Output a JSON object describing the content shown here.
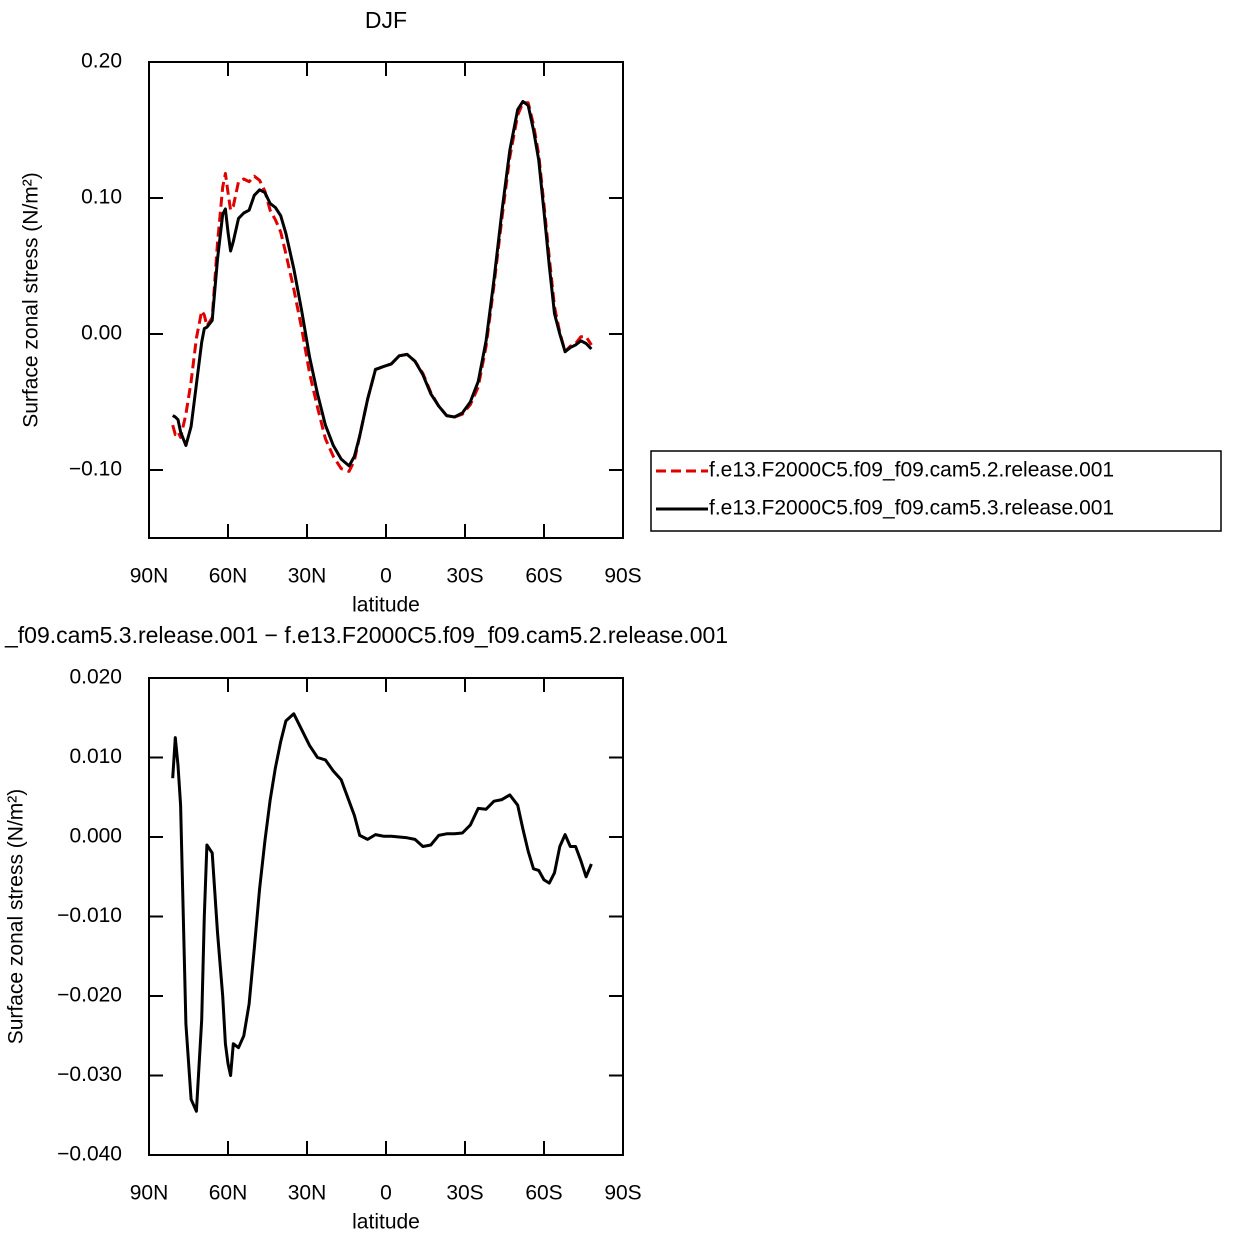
{
  "chart_data": [
    {
      "type": "line",
      "title": "DJF",
      "x_label": "latitude",
      "y_label": "Surface zonal stress (N/m²)",
      "x": [
        81,
        80,
        79,
        78,
        76,
        74,
        72,
        70,
        69,
        68,
        66,
        64,
        62,
        61,
        60,
        59,
        58,
        56,
        54,
        52,
        50,
        48,
        46,
        44,
        42,
        40,
        38,
        35,
        32,
        29,
        26,
        23,
        20,
        17,
        14,
        12,
        10,
        7,
        4,
        1,
        -2,
        -5,
        -8,
        -11,
        -14,
        -17,
        -20,
        -23,
        -26,
        -29,
        -32,
        -35,
        -38,
        -41,
        -44,
        -47,
        -50,
        -52,
        -54,
        -56,
        -58,
        -60,
        -62,
        -64,
        -66,
        -68,
        -70,
        -72,
        -74,
        -76,
        -78
      ],
      "xlim": [
        90,
        -90
      ],
      "xticks": [
        {
          "value": 90,
          "label": "90N"
        },
        {
          "value": 60,
          "label": "60N"
        },
        {
          "value": 30,
          "label": "30N"
        },
        0,
        {
          "value": -30,
          "label": "30S"
        },
        {
          "value": -60,
          "label": "60S"
        },
        {
          "value": -90,
          "label": "90S"
        }
      ],
      "ylim": [
        -0.15,
        0.2
      ],
      "yticks": [
        {
          "value": 0.2,
          "label": "0.20"
        },
        {
          "value": 0.1,
          "label": "0.10"
        },
        {
          "value": 0,
          "label": "0.00"
        },
        {
          "value": -0.1,
          "label": "−0.10"
        }
      ],
      "legend": "right",
      "series": [
        {
          "name": "f.e13.F2000C5.f09_f09.cam5.2.release.001",
          "color": "#e00000",
          "linestyle": "dashed",
          "values": [
            -0.067,
            -0.074,
            -0.072,
            -0.076,
            -0.059,
            -0.035,
            -0.003,
            0.017,
            0.014,
            0.006,
            0.012,
            0.067,
            0.108,
            0.118,
            0.104,
            0.091,
            0.094,
            0.112,
            0.114,
            0.112,
            0.116,
            0.113,
            0.105,
            0.091,
            0.084,
            0.075,
            0.059,
            0.033,
            0.004,
            -0.029,
            -0.054,
            -0.077,
            -0.09,
            -0.099,
            -0.101,
            -0.093,
            -0.075,
            -0.048,
            -0.026,
            -0.024,
            -0.022,
            -0.016,
            -0.015,
            -0.02,
            -0.029,
            -0.043,
            -0.053,
            -0.06,
            -0.061,
            -0.059,
            -0.052,
            -0.039,
            -0.009,
            0.036,
            0.085,
            0.13,
            0.161,
            0.17,
            0.17,
            0.154,
            0.132,
            0.095,
            0.056,
            0.02,
            0.001,
            -0.013,
            -0.009,
            -0.007,
            -0.002,
            -0.002,
            -0.008
          ]
        },
        {
          "name": "f.e13.F2000C5.f09_f09.cam5.3.release.001",
          "color": "#000000",
          "linestyle": "solid",
          "values": [
            -0.06,
            -0.061,
            -0.063,
            -0.072,
            -0.082,
            -0.068,
            -0.037,
            -0.006,
            0.004,
            0.005,
            0.01,
            0.055,
            0.088,
            0.092,
            0.075,
            0.061,
            0.068,
            0.085,
            0.089,
            0.091,
            0.102,
            0.106,
            0.104,
            0.096,
            0.093,
            0.087,
            0.074,
            0.048,
            0.017,
            -0.017,
            -0.044,
            -0.067,
            -0.082,
            -0.092,
            -0.097,
            -0.09,
            -0.075,
            -0.048,
            -0.026,
            -0.024,
            -0.022,
            -0.016,
            -0.015,
            -0.02,
            -0.03,
            -0.044,
            -0.053,
            -0.06,
            -0.061,
            -0.058,
            -0.05,
            -0.035,
            -0.005,
            0.04,
            0.09,
            0.135,
            0.165,
            0.171,
            0.168,
            0.15,
            0.128,
            0.09,
            0.05,
            0.015,
            0.0,
            -0.013,
            -0.01,
            -0.008,
            -0.005,
            -0.007,
            -0.011
          ]
        }
      ]
    },
    {
      "type": "line",
      "title": "_f09.cam5.3.release.001 − f.e13.F2000C5.f09_f09.cam5.2.release.001",
      "x_label": "latitude",
      "y_label": "Surface zonal stress (N/m²)",
      "x": [
        81,
        80,
        79,
        78,
        76,
        74,
        72,
        70,
        69,
        68,
        66,
        64,
        62,
        61,
        60,
        59,
        58,
        56,
        54,
        52,
        50,
        48,
        46,
        44,
        42,
        40,
        38,
        35,
        32,
        29,
        26,
        23,
        20,
        17,
        14,
        12,
        10,
        7,
        4,
        1,
        -2,
        -5,
        -8,
        -11,
        -14,
        -17,
        -20,
        -23,
        -26,
        -29,
        -32,
        -35,
        -38,
        -41,
        -44,
        -47,
        -50,
        -52,
        -54,
        -56,
        -58,
        -60,
        -62,
        -64,
        -66,
        -68,
        -70,
        -72,
        -74,
        -76,
        -78
      ],
      "xlim": [
        90,
        -90
      ],
      "xticks": [
        {
          "value": 90,
          "label": "90N"
        },
        {
          "value": 60,
          "label": "60N"
        },
        {
          "value": 30,
          "label": "30N"
        },
        0,
        {
          "value": -30,
          "label": "30S"
        },
        {
          "value": -60,
          "label": "60S"
        },
        {
          "value": -90,
          "label": "90S"
        }
      ],
      "ylim": [
        -0.04,
        0.02
      ],
      "yticks": [
        {
          "value": 0.02,
          "label": "0.020"
        },
        {
          "value": 0.01,
          "label": "0.010"
        },
        {
          "value": 0,
          "label": "0.000"
        },
        {
          "value": -0.01,
          "label": "−0.010"
        },
        {
          "value": -0.02,
          "label": "−0.020"
        },
        {
          "value": -0.03,
          "label": "−0.030"
        },
        {
          "value": -0.04,
          "label": "−0.040"
        }
      ],
      "color": "#000000",
      "values": [
        0.0074,
        0.0125,
        0.009,
        0.004,
        -0.0235,
        -0.033,
        -0.0345,
        -0.023,
        -0.01,
        -0.001,
        -0.002,
        -0.012,
        -0.02,
        -0.026,
        -0.0285,
        -0.03,
        -0.026,
        -0.0265,
        -0.025,
        -0.021,
        -0.014,
        -0.0065,
        -0.0005,
        0.0046,
        0.0087,
        0.012,
        0.0146,
        0.0155,
        0.0135,
        0.0115,
        0.01,
        0.0097,
        0.0083,
        0.0072,
        0.0045,
        0.0027,
        0.0002,
        -0.0003,
        0.0003,
        0.0001,
        0.0001,
        0.0,
        -0.0001,
        -0.0003,
        -0.0012,
        -0.001,
        0.0002,
        0.0004,
        0.0004,
        0.0005,
        0.0015,
        0.0036,
        0.0035,
        0.0045,
        0.0047,
        0.0053,
        0.004,
        0.001,
        -0.0018,
        -0.004,
        -0.0042,
        -0.0054,
        -0.0058,
        -0.0045,
        -0.0012,
        0.0003,
        -0.0012,
        -0.0012,
        -0.003,
        -0.005,
        -0.0034
      ]
    }
  ]
}
